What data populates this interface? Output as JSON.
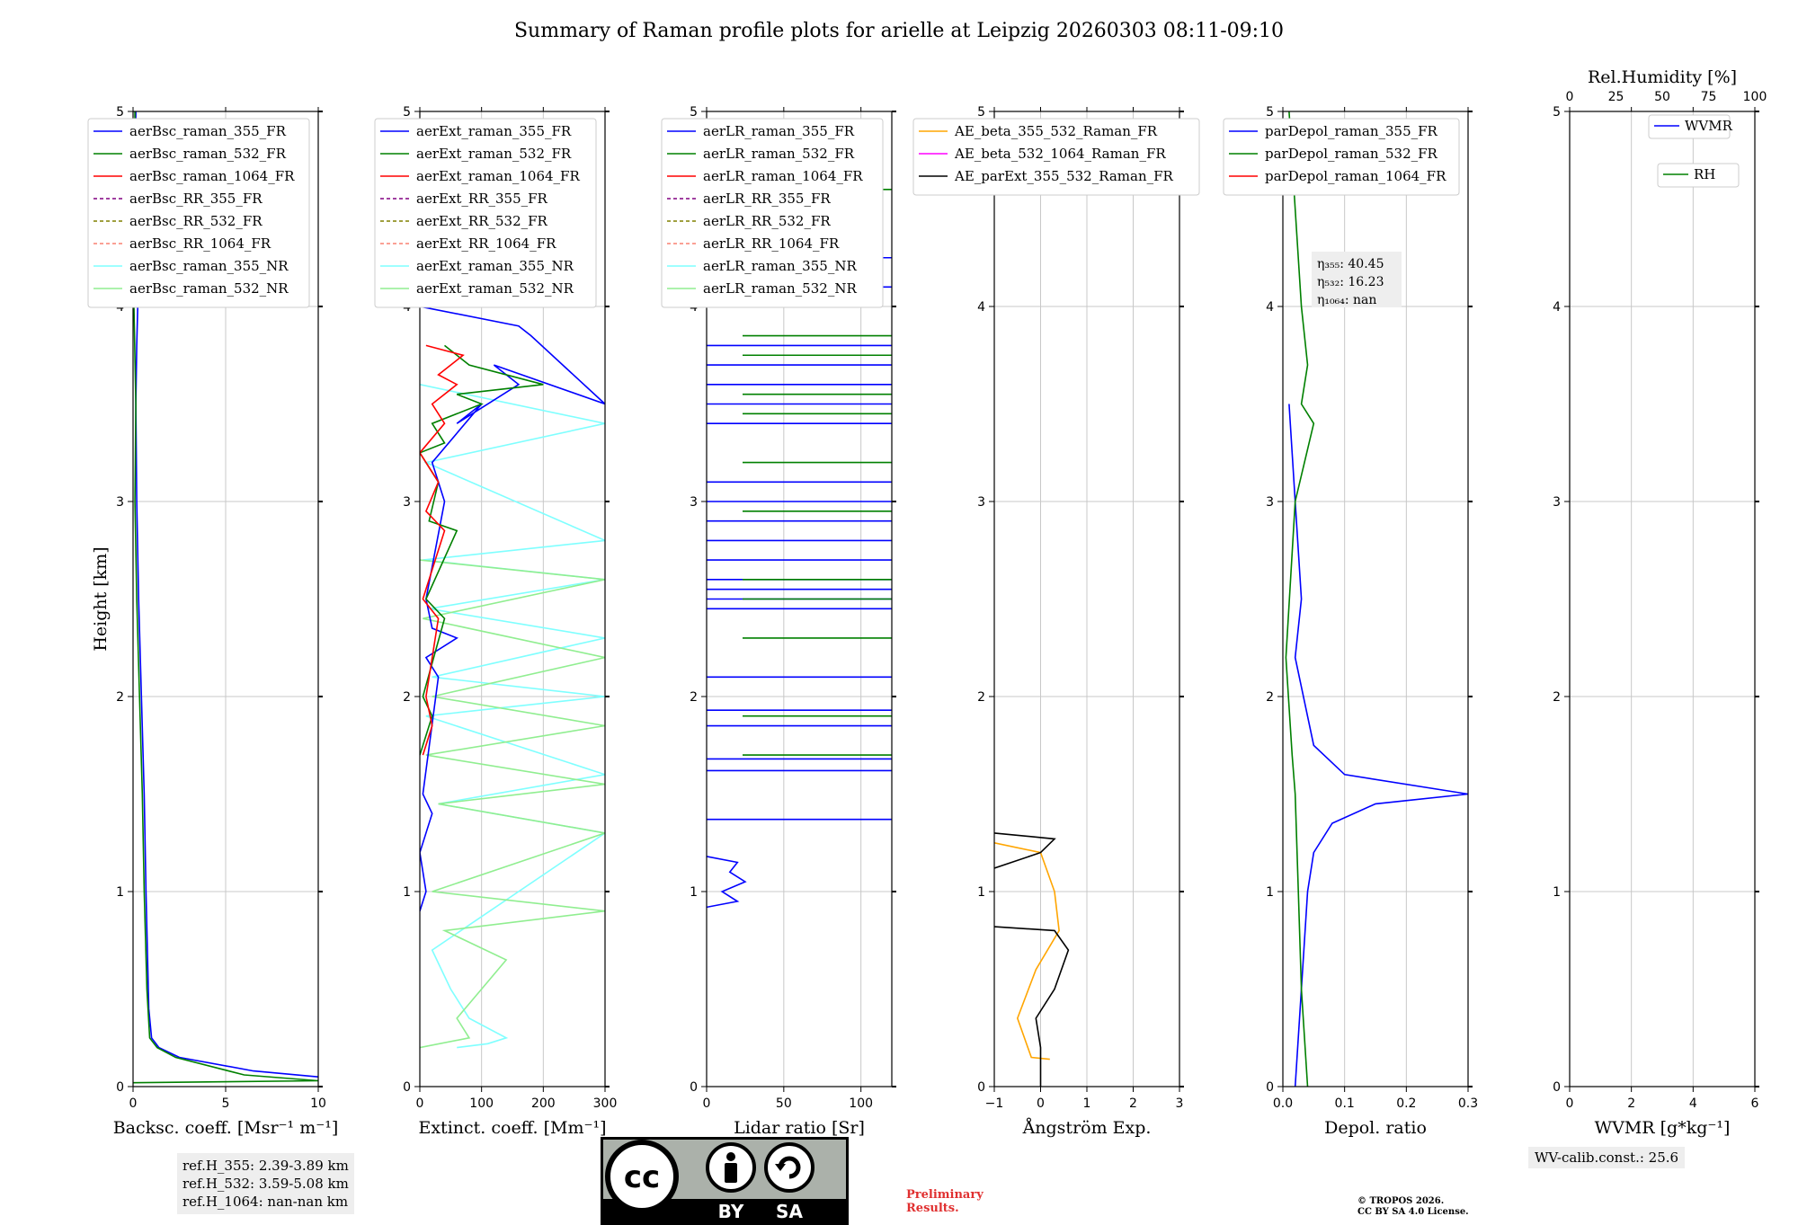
{
  "title": "Summary of Raman profile plots for arielle at Leipzig 20260303 08:11-09:10",
  "info": {
    "ref_355": "ref.H_355: 2.39-3.89 km",
    "ref_532": "ref.H_532: 3.59-5.08 km",
    "ref_1064": "ref.H_1064: nan-nan km",
    "wv_calib": "WV-calib.const.: 25.6",
    "preliminary": "Preliminary Results.",
    "copyright_line1": "© TROPOS 2026.",
    "copyright_line2": "CC BY SA 4.0 License.",
    "license_label_by": "BY",
    "license_label_sa": "SA"
  },
  "colors": {
    "blue": "#0000ff",
    "green": "#008000",
    "red": "#ff0000",
    "purple": "#800080",
    "olive": "#808000",
    "salmon": "#fa8072",
    "cyan": "#7fffff",
    "lightgreen": "#90ee90",
    "orange": "#ffa500",
    "magenta": "#ff00ff",
    "black": "#000000",
    "grid": "#c8c8c8"
  },
  "chart_data": [
    {
      "type": "line",
      "name": "backscatter",
      "xlabel": "Backsc. coeff. [Msr⁻¹ m⁻¹]",
      "ylabel": "Height [km]",
      "xlim": [
        0,
        10
      ],
      "ylim": [
        0,
        5
      ],
      "xticks": [
        0,
        5,
        10
      ],
      "yticks": [
        0,
        1,
        2,
        3,
        4,
        5
      ],
      "grid": true,
      "legend_position": "upper-right",
      "legend": [
        {
          "label": "aerBsc_raman_355_FR",
          "color": "blue",
          "dash": false
        },
        {
          "label": "aerBsc_raman_532_FR",
          "color": "green",
          "dash": false
        },
        {
          "label": "aerBsc_raman_1064_FR",
          "color": "red",
          "dash": false
        },
        {
          "label": "aerBsc_RR_355_FR",
          "color": "purple",
          "dash": true
        },
        {
          "label": "aerBsc_RR_532_FR",
          "color": "olive",
          "dash": true
        },
        {
          "label": "aerBsc_RR_1064_FR",
          "color": "salmon",
          "dash": true
        },
        {
          "label": "aerBsc_raman_355_NR",
          "color": "cyan",
          "dash": false
        },
        {
          "label": "aerBsc_raman_532_NR",
          "color": "lightgreen",
          "dash": false
        }
      ],
      "series": [
        {
          "name": "aerBsc_raman_355_FR",
          "color": "blue",
          "x": [
            10,
            6.5,
            2.5,
            1.4,
            1.0,
            0.85,
            0.7,
            0.6,
            0.45,
            0.3,
            0.2,
            0.15,
            0.2,
            0.25,
            0.1,
            0.15
          ],
          "y": [
            0.05,
            0.08,
            0.15,
            0.2,
            0.25,
            0.4,
            1.0,
            1.5,
            2.0,
            2.5,
            3.0,
            3.5,
            3.8,
            4.0,
            4.5,
            5.0
          ]
        },
        {
          "name": "aerBsc_raman_532_FR",
          "color": "green",
          "x": [
            0,
            10,
            6.0,
            2.3,
            1.3,
            0.9,
            0.75,
            0.6,
            0.5,
            0.35,
            0.2,
            0.1,
            0.15,
            0.05,
            0.1
          ],
          "y": [
            0.02,
            0.03,
            0.06,
            0.15,
            0.2,
            0.25,
            0.5,
            1.0,
            1.5,
            2.0,
            2.5,
            3.0,
            3.5,
            4.0,
            5.0
          ]
        }
      ]
    },
    {
      "type": "line",
      "name": "extinction",
      "xlabel": "Extinct. coeff. [Mm⁻¹]",
      "xlim": [
        0,
        300
      ],
      "ylim": [
        0,
        5
      ],
      "xticks": [
        0,
        100,
        200,
        300
      ],
      "yticks": [
        0,
        1,
        2,
        3,
        4,
        5
      ],
      "grid": true,
      "legend_position": "upper-right",
      "legend": [
        {
          "label": "aerExt_raman_355_FR",
          "color": "blue",
          "dash": false
        },
        {
          "label": "aerExt_raman_532_FR",
          "color": "green",
          "dash": false
        },
        {
          "label": "aerExt_raman_1064_FR",
          "color": "red",
          "dash": false
        },
        {
          "label": "aerExt_RR_355_FR",
          "color": "purple",
          "dash": true
        },
        {
          "label": "aerExt_RR_532_FR",
          "color": "olive",
          "dash": true
        },
        {
          "label": "aerExt_RR_1064_FR",
          "color": "salmon",
          "dash": true
        },
        {
          "label": "aerExt_raman_355_NR",
          "color": "cyan",
          "dash": false
        },
        {
          "label": "aerExt_raman_532_NR",
          "color": "lightgreen",
          "dash": false
        }
      ],
      "series": [
        {
          "name": "aerExt_raman_355_NR",
          "color": "cyan",
          "x": [
            60,
            110,
            140,
            80,
            50,
            20,
            300,
            30,
            300,
            10,
            300,
            20,
            300,
            15,
            300,
            5,
            300,
            10,
            300,
            0
          ],
          "y": [
            0.2,
            0.22,
            0.25,
            0.35,
            0.5,
            0.7,
            1.3,
            1.45,
            1.6,
            1.9,
            2.0,
            2.1,
            2.3,
            2.45,
            2.6,
            2.7,
            2.8,
            3.2,
            3.4,
            3.6
          ]
        },
        {
          "name": "aerExt_raman_532_NR",
          "color": "lightgreen",
          "x": [
            0,
            80,
            60,
            100,
            140,
            40,
            300,
            20,
            300,
            30,
            300,
            10,
            300,
            20,
            300,
            5,
            300,
            0
          ],
          "y": [
            0.2,
            0.25,
            0.35,
            0.5,
            0.65,
            0.8,
            0.9,
            1.0,
            1.3,
            1.45,
            1.55,
            1.7,
            1.85,
            2.0,
            2.2,
            2.4,
            2.6,
            2.7
          ]
        },
        {
          "name": "aerExt_raman_355_FR",
          "color": "blue",
          "x": [
            0,
            10,
            0,
            20,
            5,
            30,
            10,
            60,
            20,
            10,
            40,
            30,
            20,
            100,
            60,
            160,
            120,
            300,
            180,
            160,
            0
          ],
          "y": [
            0.9,
            1.0,
            1.2,
            1.4,
            1.5,
            2.1,
            2.2,
            2.3,
            2.35,
            2.5,
            3.0,
            3.1,
            3.2,
            3.5,
            3.4,
            3.6,
            3.7,
            3.5,
            3.85,
            3.9,
            4.0
          ]
        },
        {
          "name": "aerExt_raman_532_FR",
          "color": "green",
          "x": [
            0,
            20,
            5,
            40,
            10,
            60,
            15,
            30,
            0,
            40,
            20,
            100,
            60,
            200,
            80,
            40
          ],
          "y": [
            1.7,
            1.9,
            2.0,
            2.4,
            2.5,
            2.85,
            2.9,
            3.1,
            3.25,
            3.3,
            3.4,
            3.5,
            3.55,
            3.6,
            3.7,
            3.8
          ]
        },
        {
          "name": "aerExt_raman_1064_FR",
          "color": "red",
          "x": [
            5,
            20,
            10,
            30,
            5,
            40,
            10,
            30,
            0,
            40,
            20,
            60,
            30,
            70,
            10
          ],
          "y": [
            1.7,
            1.85,
            2.0,
            2.4,
            2.5,
            2.85,
            2.95,
            3.1,
            3.25,
            3.4,
            3.5,
            3.6,
            3.65,
            3.75,
            3.8
          ]
        }
      ]
    },
    {
      "type": "line",
      "name": "lidar_ratio",
      "xlabel": "Lidar ratio [Sr]",
      "xlim": [
        0,
        120
      ],
      "ylim": [
        0,
        5
      ],
      "xticks": [
        0,
        50,
        100
      ],
      "yticks": [
        0,
        1,
        2,
        3,
        4,
        5
      ],
      "grid": true,
      "legend_position": "upper-right",
      "legend": [
        {
          "label": "aerLR_raman_355_FR",
          "color": "blue",
          "dash": false
        },
        {
          "label": "aerLR_raman_532_FR",
          "color": "green",
          "dash": false
        },
        {
          "label": "aerLR_raman_1064_FR",
          "color": "red",
          "dash": false
        },
        {
          "label": "aerLR_RR_355_FR",
          "color": "purple",
          "dash": true
        },
        {
          "label": "aerLR_RR_532_FR",
          "color": "olive",
          "dash": true
        },
        {
          "label": "aerLR_RR_1064_FR",
          "color": "salmon",
          "dash": true
        },
        {
          "label": "aerLR_raman_355_NR",
          "color": "cyan",
          "dash": false
        },
        {
          "label": "aerLR_raman_532_NR",
          "color": "lightgreen",
          "dash": false
        }
      ],
      "series": [
        {
          "name": "aerLR_raman_355_FR",
          "color": "blue",
          "x": [
            0,
            20,
            10,
            25,
            15,
            20,
            0
          ],
          "y": [
            0.92,
            0.95,
            1.0,
            1.05,
            1.1,
            1.15,
            1.18
          ]
        }
      ],
      "hlines_355": [
        1.37,
        1.62,
        1.68,
        1.85,
        1.93,
        2.1,
        2.45,
        2.5,
        2.55,
        2.6,
        2.7,
        2.8,
        2.9,
        3.0,
        3.1,
        3.4,
        3.5,
        3.6,
        3.7,
        3.8,
        4.1,
        4.25
      ],
      "hlines_532": [
        1.7,
        1.9,
        2.3,
        2.5,
        2.6,
        2.95,
        3.2,
        3.45,
        3.55,
        3.75,
        3.85,
        4.6
      ]
    },
    {
      "type": "line",
      "name": "angstrom",
      "xlabel": "Ångström Exp.",
      "xlim": [
        -1,
        3
      ],
      "ylim": [
        0,
        5
      ],
      "xticks": [
        -1,
        0,
        1,
        2,
        3
      ],
      "yticks": [
        0,
        1,
        2,
        3,
        4,
        5
      ],
      "grid": true,
      "legend_position": "upper-right",
      "legend": [
        {
          "label": "AE_beta_355_532_Raman_FR",
          "color": "orange",
          "dash": false
        },
        {
          "label": "AE_beta_532_1064_Raman_FR",
          "color": "magenta",
          "dash": false
        },
        {
          "label": "AE_parExt_355_532_Raman_FR",
          "color": "black",
          "dash": false
        }
      ],
      "series": [
        {
          "name": "AE_beta_355_532_Raman_FR",
          "color": "orange",
          "x": [
            0.2,
            -0.2,
            -0.5,
            -0.1,
            0.4,
            0.3,
            0.0,
            -1.0
          ],
          "y": [
            0.14,
            0.15,
            0.35,
            0.6,
            0.8,
            1.0,
            1.2,
            1.25
          ]
        },
        {
          "name": "AE_parExt_355_532_Raman_FR",
          "color": "black",
          "x": [
            0,
            0,
            -0.1,
            0.3,
            0.6,
            0.3,
            -1.0
          ],
          "y": [
            0.0,
            0.2,
            0.35,
            0.5,
            0.7,
            0.8,
            0.82
          ]
        },
        {
          "name": "AE_parExt_355_532_Raman_FR_b",
          "color": "black",
          "x": [
            -1.0,
            0.3,
            0.0,
            -1.0
          ],
          "y": [
            1.3,
            1.27,
            1.2,
            1.12
          ]
        }
      ]
    },
    {
      "type": "line",
      "name": "depol",
      "xlabel": "Depol. ratio",
      "xlim": [
        0,
        0.3
      ],
      "ylim": [
        0,
        5
      ],
      "xticks": [
        0.0,
        0.1,
        0.2,
        0.3
      ],
      "yticks": [
        0,
        1,
        2,
        3,
        4,
        5
      ],
      "grid": true,
      "legend_position": "upper-right",
      "legend": [
        {
          "label": "parDepol_raman_355_FR",
          "color": "blue",
          "dash": false
        },
        {
          "label": "parDepol_raman_532_FR",
          "color": "green",
          "dash": false
        },
        {
          "label": "parDepol_raman_1064_FR",
          "color": "red",
          "dash": false
        }
      ],
      "eta_355": "η₃₅₅: 40.45",
      "eta_532": "η₅₃₂: 16.23",
      "eta_1064": "η₁₀₆₄: nan",
      "series": [
        {
          "name": "parDepol_raman_355_FR",
          "color": "blue",
          "x": [
            0.02,
            0.03,
            0.04,
            0.05,
            0.08,
            0.15,
            0.3,
            0.1,
            0.05,
            0.02,
            0.03,
            0.02,
            0.01
          ],
          "y": [
            0.0,
            0.5,
            1.0,
            1.2,
            1.35,
            1.45,
            1.5,
            1.6,
            1.75,
            2.2,
            2.5,
            3.0,
            3.5
          ]
        },
        {
          "name": "parDepol_raman_532_FR",
          "color": "green",
          "x": [
            0.04,
            0.03,
            0.025,
            0.02,
            0.015,
            0.005,
            0.02,
            0.05,
            0.03,
            0.04,
            0.03,
            0.02,
            0.01
          ],
          "y": [
            0.0,
            0.5,
            1.0,
            1.5,
            1.7,
            2.2,
            3.0,
            3.4,
            3.5,
            3.7,
            4.0,
            4.5,
            5.0
          ]
        }
      ]
    },
    {
      "type": "line",
      "name": "wvmr",
      "xlabel": "WVMR [g*kg⁻¹]",
      "top_xlabel": "Rel.Humidity [%]",
      "xlim": [
        0,
        6
      ],
      "top_xlim": [
        0,
        100
      ],
      "ylim": [
        0,
        5
      ],
      "xticks": [
        0,
        2,
        4,
        6
      ],
      "top_xticks": [
        0,
        25,
        50,
        75,
        100
      ],
      "yticks": [
        0,
        1,
        2,
        3,
        4,
        5
      ],
      "grid": true,
      "legend_position": "upper-right",
      "legend": [
        {
          "label": "WVMR",
          "color": "blue",
          "dash": false
        },
        {
          "label": "RH",
          "color": "green",
          "dash": false
        }
      ],
      "series": []
    }
  ]
}
